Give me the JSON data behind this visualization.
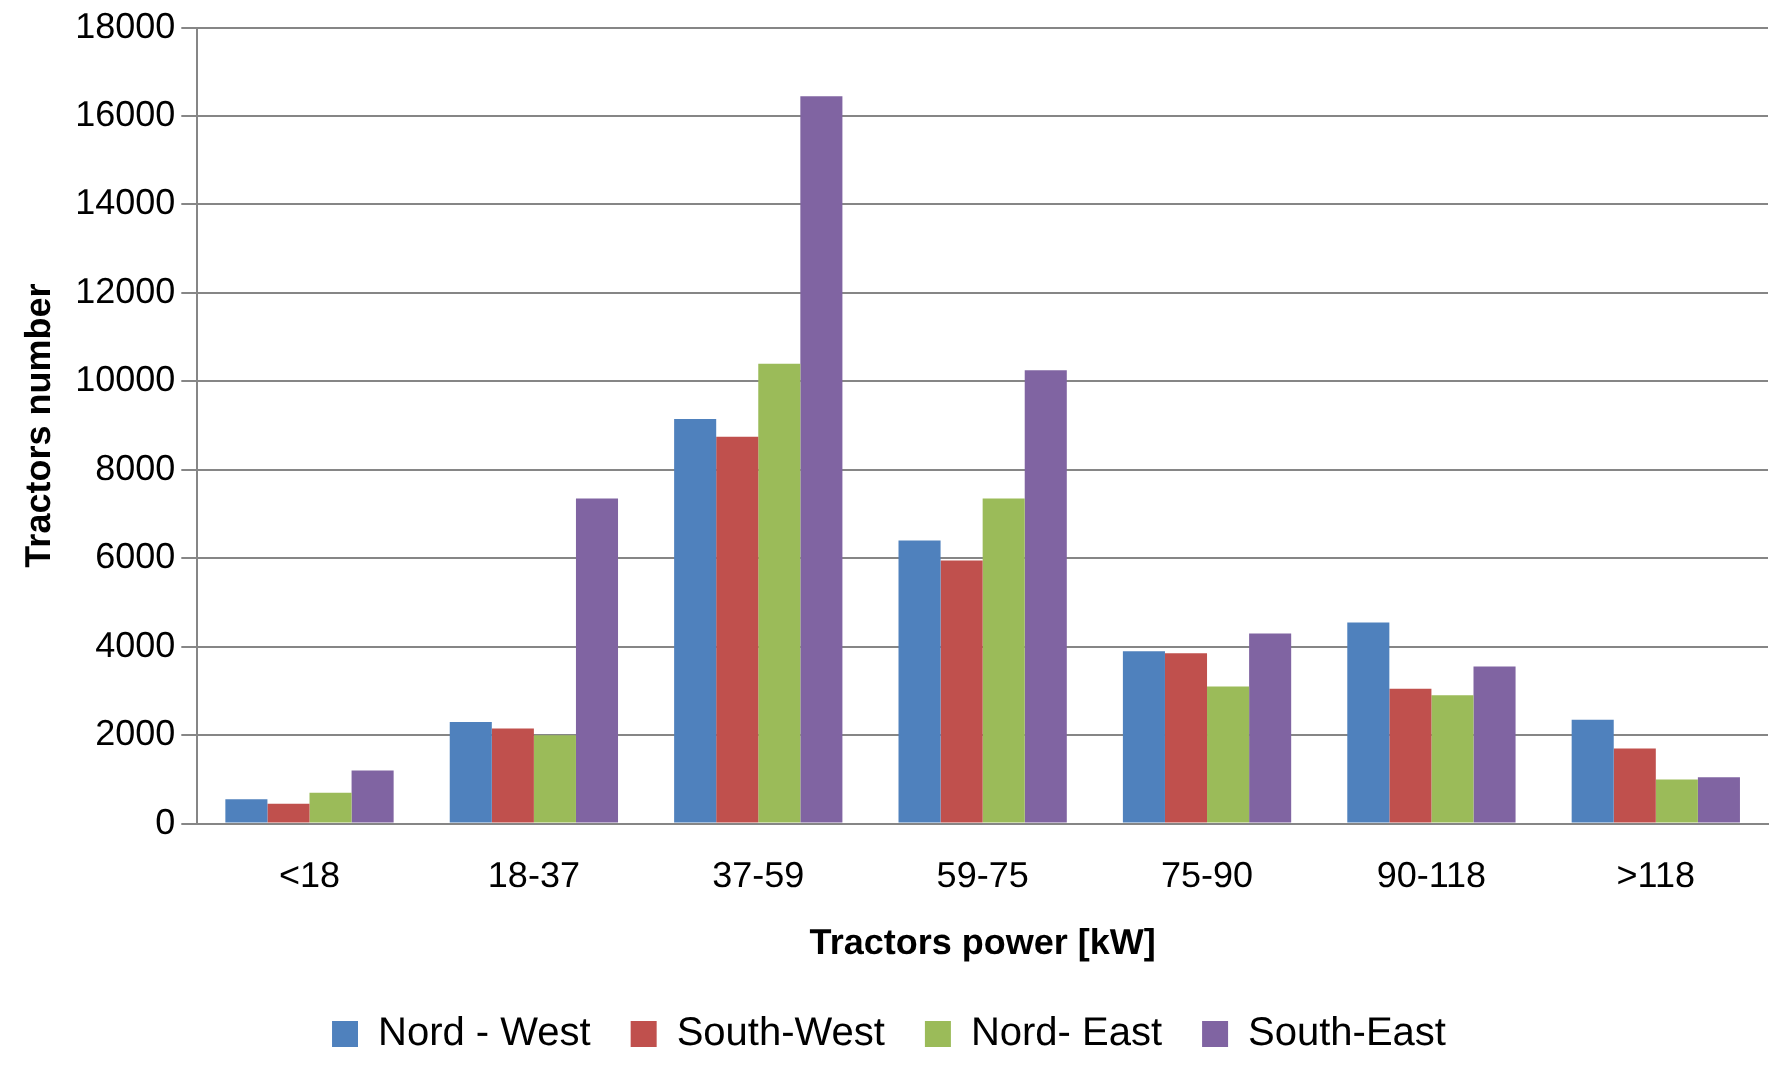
{
  "chart_data": {
    "type": "bar",
    "xlabel": "Tractors power [kW]",
    "ylabel": "Tractors number",
    "categories": [
      "<18",
      "18-37",
      "37-59",
      "59-75",
      "75-90",
      "90-118",
      ">118"
    ],
    "series": [
      {
        "name": "Nord - West",
        "color": "#4f81bd",
        "values": [
          550,
          2300,
          9150,
          6400,
          3900,
          4550,
          2350
        ]
      },
      {
        "name": "South-West",
        "color": "#c0504d",
        "values": [
          450,
          2150,
          8750,
          5950,
          3850,
          3050,
          1700
        ]
      },
      {
        "name": "Nord- East",
        "color": "#9bbb59",
        "values": [
          700,
          2000,
          10400,
          7350,
          3100,
          2900,
          1000
        ]
      },
      {
        "name": "South-East",
        "color": "#8064a2",
        "values": [
          1200,
          7350,
          16450,
          10250,
          4300,
          3550,
          1050
        ]
      }
    ],
    "ylim": [
      0,
      18000
    ],
    "yticks": [
      0,
      2000,
      4000,
      6000,
      8000,
      10000,
      12000,
      14000,
      16000,
      18000
    ],
    "grid": "y",
    "legend": "bottom"
  }
}
